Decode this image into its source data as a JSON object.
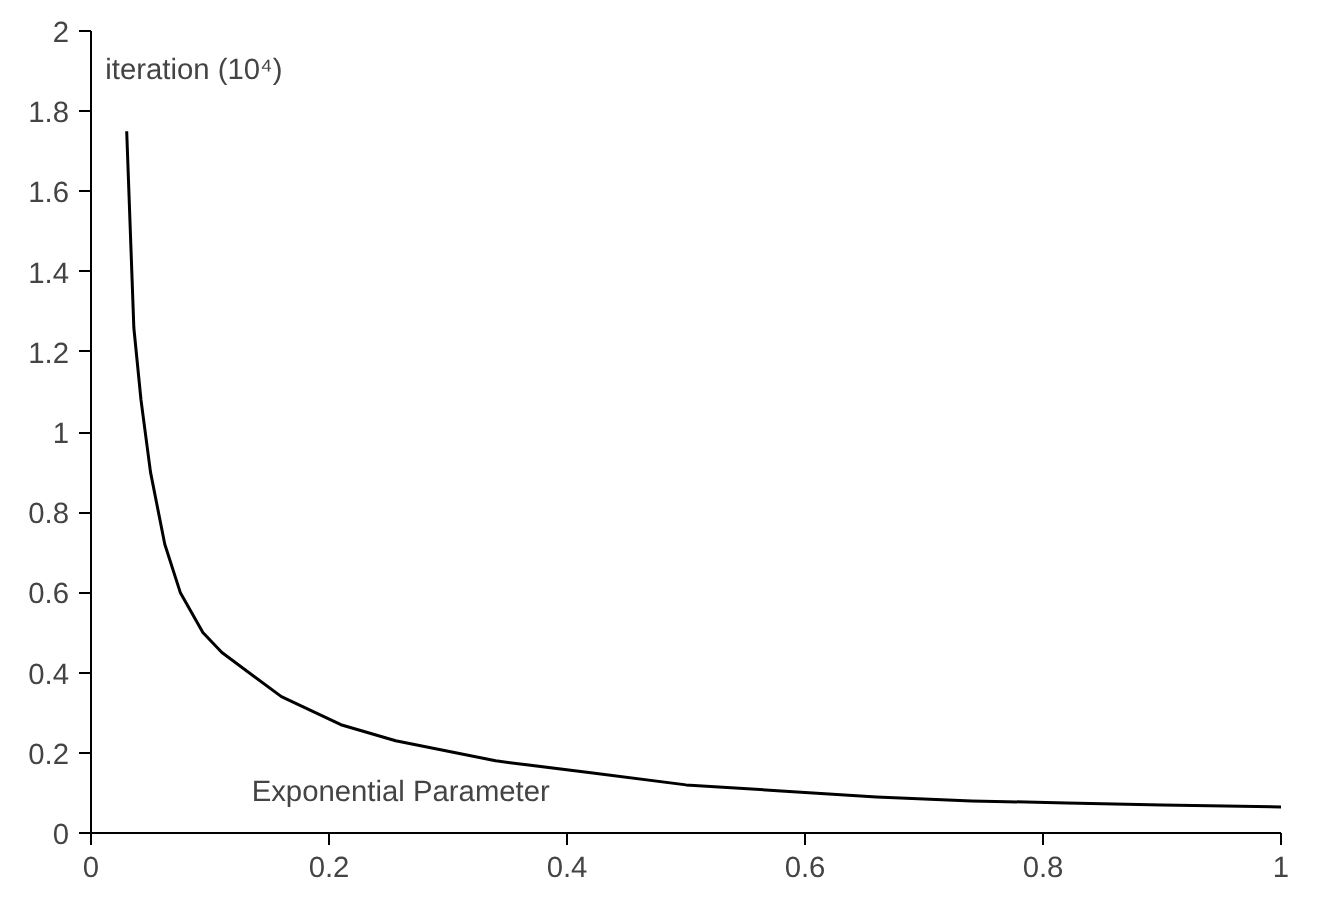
{
  "chart_data": {
    "type": "line",
    "xlabel": "Exponential Parameter",
    "ylabel": "iteration (10⁴)",
    "x": [
      0.03,
      0.036,
      0.042,
      0.05,
      0.062,
      0.075,
      0.094,
      0.11,
      0.16,
      0.21,
      0.256,
      0.34,
      0.42,
      0.5,
      0.58,
      0.66,
      0.74,
      0.82,
      0.9,
      1.0
    ],
    "series": [
      {
        "color": "#000000",
        "values": [
          1.75,
          1.26,
          1.08,
          0.9,
          0.72,
          0.6,
          0.5,
          0.45,
          0.34,
          0.27,
          0.23,
          0.18,
          0.15,
          0.12,
          0.105,
          0.09,
          0.08,
          0.075,
          0.07,
          0.065
        ]
      }
    ],
    "xlim": [
      0,
      1
    ],
    "ylim": [
      0,
      2
    ],
    "xticks": [
      0,
      0.2,
      0.4,
      0.6,
      0.8,
      1
    ],
    "yticks": [
      0,
      0.2,
      0.4,
      0.6,
      0.8,
      1,
      1.2,
      1.4,
      1.6,
      1.8,
      2
    ],
    "grid": false,
    "marker": "none",
    "line_style": "solid"
  }
}
